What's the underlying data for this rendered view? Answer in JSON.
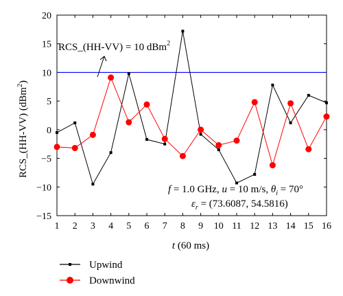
{
  "chart_data": {
    "type": "line",
    "xlabel": {
      "main": "t",
      "unit": " (60 ms)"
    },
    "ylabel": {
      "main": "RCS_(HH-VV) (dBm",
      "sup": "2",
      "end": ")"
    },
    "x": [
      1,
      2,
      3,
      4,
      5,
      6,
      7,
      8,
      9,
      10,
      11,
      12,
      13,
      14,
      15,
      16
    ],
    "xlim": [
      1,
      16
    ],
    "ylim": [
      -15,
      20
    ],
    "xticks": [
      "1",
      "2",
      "3",
      "4",
      "5",
      "6",
      "7",
      "8",
      "9",
      "10",
      "11",
      "12",
      "13",
      "14",
      "15",
      "16"
    ],
    "yticks": [
      "20",
      "15",
      "10",
      "5",
      "0",
      "−5",
      "−10",
      "−15"
    ],
    "grid": false,
    "series": [
      {
        "name": "Upwind",
        "color": "#000000",
        "marker": "square",
        "values": [
          -0.5,
          1.2,
          -9.5,
          -4.0,
          9.8,
          -1.7,
          -2.5,
          17.2,
          -0.8,
          -3.5,
          -9.3,
          -7.8,
          7.8,
          1.2,
          6.0,
          4.7
        ]
      },
      {
        "name": "Downwind",
        "color": "#ff0000",
        "marker": "circle",
        "values": [
          -3.0,
          -3.2,
          -0.9,
          9.1,
          1.3,
          4.4,
          -1.6,
          -4.6,
          0.0,
          -2.7,
          -1.9,
          4.8,
          -6.2,
          4.6,
          -3.4,
          2.3
        ]
      }
    ],
    "reference_line": {
      "y": 10,
      "color": "#0000ff",
      "label": {
        "main": "RCS_(HH-VV) = 10 dBm",
        "sup": "2"
      }
    },
    "annotation": {
      "line1": {
        "f": "f",
        "f_val": " = 1.0 GHz, ",
        "u": "u",
        "u_val": " = 10 m/s, ",
        "theta": "θ",
        "theta_sub": "i",
        "theta_val": " = 70°"
      },
      "line2": {
        "eps": "ε",
        "eps_sub": "r",
        "eps_val": " = (73.6087, 54.5816)"
      }
    },
    "legend_position": "bottom-left"
  }
}
